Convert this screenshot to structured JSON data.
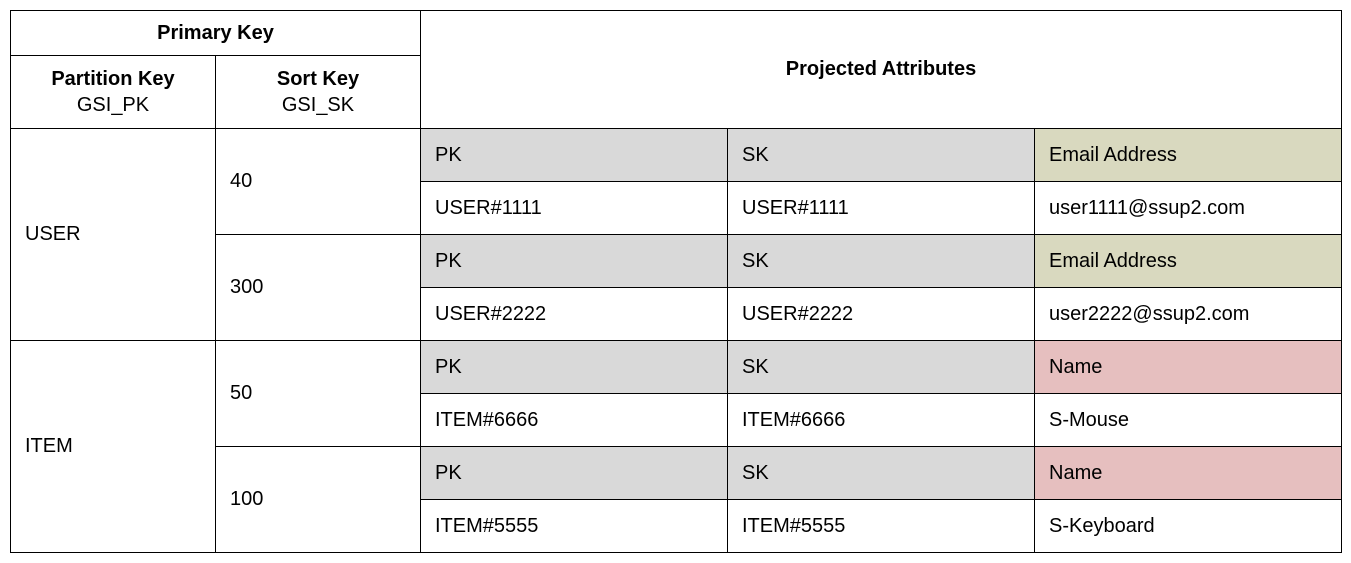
{
  "colors": {
    "grey": "#d9d9d9",
    "olive": "#d9d9bf",
    "pink": "#e6bfbf",
    "white": "#ffffff",
    "border": "#000000"
  },
  "header": {
    "primary_key": "Primary Key",
    "partition_key_bold": "Partition Key",
    "partition_key_sub": "GSI_PK",
    "sort_key_bold": "Sort Key",
    "sort_key_sub": "GSI_SK",
    "projected": "Projected Attributes"
  },
  "labels": {
    "pk": "PK",
    "sk": "SK",
    "email": "Email Address",
    "name": "Name"
  },
  "rows": {
    "user_label": "USER",
    "item_label": "ITEM",
    "sk_40": "40",
    "sk_300": "300",
    "sk_50": "50",
    "sk_100": "100",
    "u1_pk": "USER#1111",
    "u1_sk": "USER#1111",
    "u1_email": "user1111@ssup2.com",
    "u2_pk": "USER#2222",
    "u2_sk": "USER#2222",
    "u2_email": "user2222@ssup2.com",
    "i1_pk": "ITEM#6666",
    "i1_sk": "ITEM#6666",
    "i1_name": "S-Mouse",
    "i2_pk": "ITEM#5555",
    "i2_sk": "ITEM#5555",
    "i2_name": "S-Keyboard"
  }
}
